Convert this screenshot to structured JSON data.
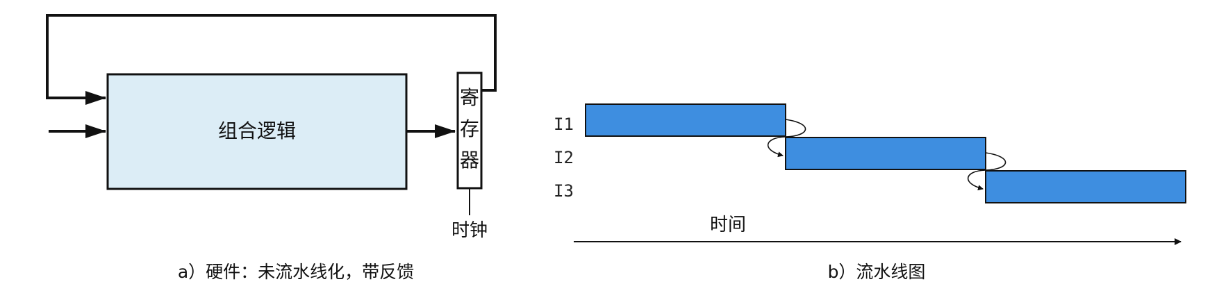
{
  "hardware": {
    "logic_label": "组合逻辑",
    "register_chars": [
      "寄",
      "存",
      "器"
    ],
    "clock_label": "时钟",
    "caption": "a）硬件：未流水线化，带反馈"
  },
  "pipeline": {
    "time_label": "时间",
    "caption": "b）流水线图",
    "instructions": [
      "I1",
      "I2",
      "I3"
    ]
  },
  "colors": {
    "logic_fill": "#dcedf6",
    "instr_fill": "#3e8ee0",
    "line": "#111111"
  }
}
